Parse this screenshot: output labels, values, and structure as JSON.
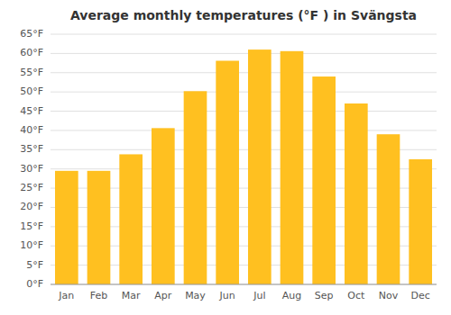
{
  "chart_data": {
    "type": "bar",
    "title": "Average monthly temperatures (°F ) in Svängsta",
    "categories": [
      "Jan",
      "Feb",
      "Mar",
      "Apr",
      "May",
      "Jun",
      "Jul",
      "Aug",
      "Sep",
      "Oct",
      "Nov",
      "Dec"
    ],
    "values": [
      29.5,
      29.5,
      33.8,
      40.6,
      50.2,
      58.1,
      61.0,
      60.6,
      54.0,
      47.0,
      39.0,
      32.5
    ],
    "color": "#FFC020",
    "ylim": [
      0,
      65
    ],
    "yticks": [
      {
        "value": 0,
        "label": "0°F"
      },
      {
        "value": 5,
        "label": "5°F"
      },
      {
        "value": 10,
        "label": "10°F"
      },
      {
        "value": 15,
        "label": "15°F"
      },
      {
        "value": 20,
        "label": "20°F"
      },
      {
        "value": 25,
        "label": "25°F"
      },
      {
        "value": 30,
        "label": "30°F"
      },
      {
        "value": 35,
        "label": "35°F"
      },
      {
        "value": 40,
        "label": "40°F"
      },
      {
        "value": 45,
        "label": "45°F"
      },
      {
        "value": 50,
        "label": "50°F"
      },
      {
        "value": 55,
        "label": "55°F"
      },
      {
        "value": 60,
        "label": "60°F"
      },
      {
        "value": 65,
        "label": "65°F"
      }
    ],
    "grid": true
  }
}
